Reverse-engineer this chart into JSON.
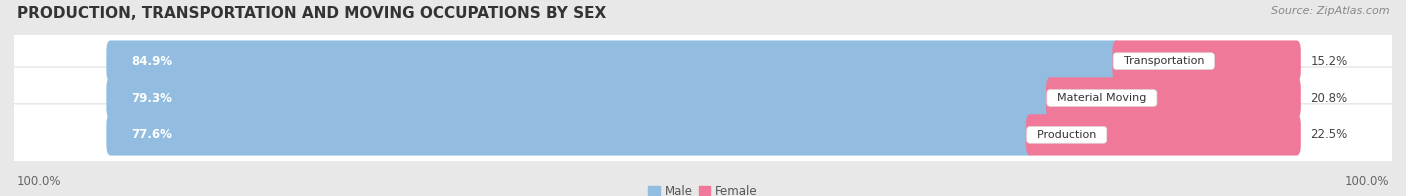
{
  "title": "PRODUCTION, TRANSPORTATION AND MOVING OCCUPATIONS BY SEX",
  "source": "Source: ZipAtlas.com",
  "categories": [
    "Transportation",
    "Material Moving",
    "Production"
  ],
  "male_values": [
    84.9,
    79.3,
    77.6
  ],
  "female_values": [
    15.2,
    20.8,
    22.5
  ],
  "male_color": "#92bde0",
  "female_color": "#f07898",
  "male_label": "Male",
  "female_label": "Female",
  "bar_height": 0.52,
  "background_color": "#e8e8e8",
  "row_bg_color": "#f4f4f4",
  "left_label": "100.0%",
  "right_label": "100.0%",
  "title_fontsize": 11,
  "label_fontsize": 8.5,
  "tick_fontsize": 8.5,
  "source_fontsize": 8
}
